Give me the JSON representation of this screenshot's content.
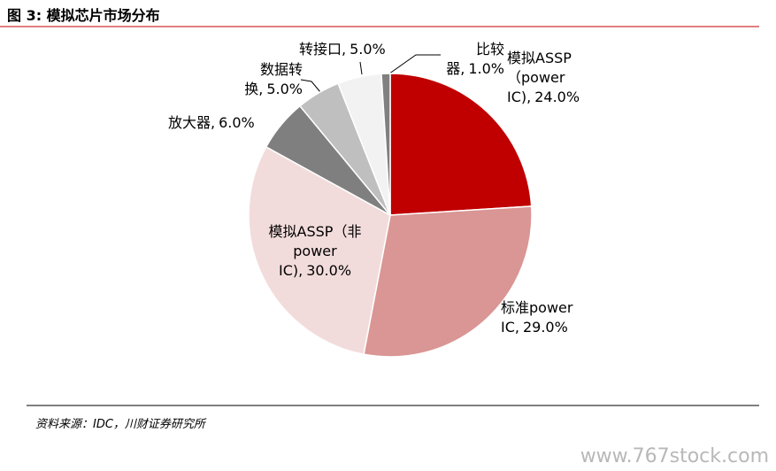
{
  "title": "图 3:  模拟芯片市场分布",
  "chart_data": {
    "type": "pie",
    "categories": [
      "模拟ASSP（power IC),",
      "标准power IC,",
      "模拟ASSP（非power IC),",
      "放大器,",
      "数据转换,",
      "转接口,",
      "比较器,"
    ],
    "values": [
      24,
      29,
      30,
      6,
      5,
      5,
      1
    ],
    "value_labels": [
      "24.0%",
      "29.0%",
      "30.0%",
      "6.0%",
      "5.0%",
      "5.0%",
      "1.0%"
    ],
    "colors": [
      "#c00000",
      "#d99694",
      "#f2dcdb",
      "#7f7f7f",
      "#bfbfbf",
      "#f2f2f2",
      "#808080"
    ]
  },
  "source": "资料来源：IDC，川财证券研究所",
  "watermark": "www.767stock.com"
}
